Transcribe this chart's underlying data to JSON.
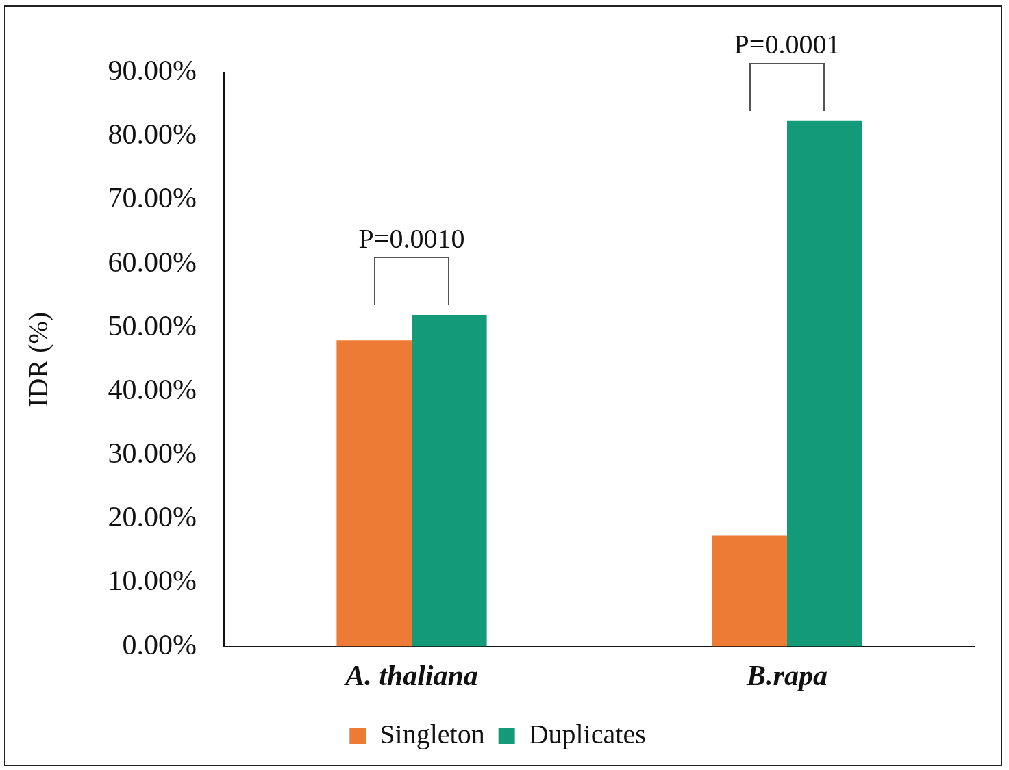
{
  "chart_data": {
    "type": "bar",
    "ylabel": "IDR (%)",
    "categories": [
      "A. thaliana",
      "B.rapa"
    ],
    "series": [
      {
        "name": "Singleton",
        "color": "#ed7a35",
        "values": [
          48,
          17.4
        ]
      },
      {
        "name": "Duplicates",
        "color": "#139a78",
        "values": [
          52,
          82.4
        ]
      }
    ],
    "ylim": [
      0,
      90
    ],
    "yticks": [
      {
        "value": 0,
        "label": "0.00%"
      },
      {
        "value": 10,
        "label": "10.00%"
      },
      {
        "value": 20,
        "label": "20.00%"
      },
      {
        "value": 30,
        "label": "30.00%"
      },
      {
        "value": 40,
        "label": "40.00%"
      },
      {
        "value": 50,
        "label": "50.00%"
      },
      {
        "value": 60,
        "label": "60.00%"
      },
      {
        "value": 70,
        "label": "70.00%"
      },
      {
        "value": 80,
        "label": "80.00%"
      },
      {
        "value": 90,
        "label": "90.00%"
      }
    ],
    "annotations": [
      "P=0.0010",
      "P=0.0001"
    ],
    "grid": false,
    "legend": "bottom"
  }
}
